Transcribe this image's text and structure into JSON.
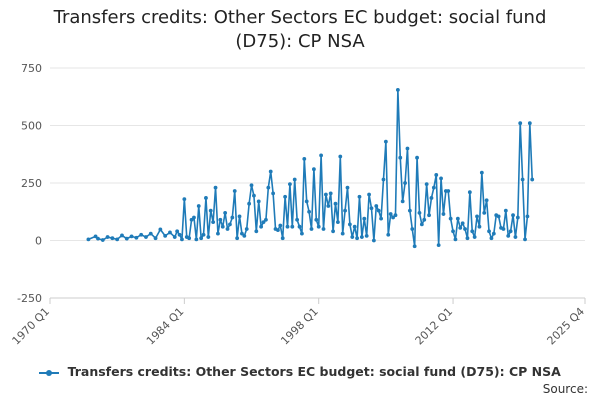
{
  "chart_data": {
    "type": "line",
    "title": "Transfers credits: Other Sectors EC budget: social fund (D75): CP NSA",
    "xlabel": "",
    "ylabel": "",
    "ylim": [
      -250,
      750
    ],
    "xlim": [
      1970,
      2025.75
    ],
    "y_ticks": [
      "-250",
      "0",
      "250",
      "500",
      "750"
    ],
    "x_ticks": [
      "1970 Q1",
      "1984 Q1",
      "1998 Q1",
      "2012 Q1",
      "2025 Q4"
    ],
    "grid": true,
    "legend_position": "bottom",
    "color": "#1f7bb8",
    "series": [
      {
        "name": "Transfers credits: Other Sectors EC budget: social fund (D75): CP NSA",
        "points": [
          [
            1974.0,
            5
          ],
          [
            1974.75,
            18
          ],
          [
            1975.0,
            8
          ],
          [
            1975.5,
            2
          ],
          [
            1976.0,
            15
          ],
          [
            1976.5,
            10
          ],
          [
            1977.0,
            5
          ],
          [
            1977.5,
            22
          ],
          [
            1978.0,
            8
          ],
          [
            1978.5,
            18
          ],
          [
            1979.0,
            12
          ],
          [
            1979.5,
            25
          ],
          [
            1980.0,
            15
          ],
          [
            1980.5,
            30
          ],
          [
            1981.0,
            10
          ],
          [
            1981.5,
            48
          ],
          [
            1982.0,
            20
          ],
          [
            1982.5,
            35
          ],
          [
            1983.0,
            15
          ],
          [
            1983.25,
            40
          ],
          [
            1983.5,
            25
          ],
          [
            1983.75,
            5
          ],
          [
            1984.0,
            180
          ],
          [
            1984.25,
            15
          ],
          [
            1984.5,
            10
          ],
          [
            1984.75,
            90
          ],
          [
            1985.0,
            100
          ],
          [
            1985.25,
            5
          ],
          [
            1985.5,
            150
          ],
          [
            1985.75,
            10
          ],
          [
            1986.0,
            25
          ],
          [
            1986.25,
            185
          ],
          [
            1986.5,
            15
          ],
          [
            1986.75,
            130
          ],
          [
            1987.0,
            80
          ],
          [
            1987.25,
            230
          ],
          [
            1987.5,
            30
          ],
          [
            1987.75,
            90
          ],
          [
            1988.0,
            60
          ],
          [
            1988.25,
            120
          ],
          [
            1988.5,
            50
          ],
          [
            1988.75,
            70
          ],
          [
            1989.0,
            100
          ],
          [
            1989.25,
            215
          ],
          [
            1989.5,
            10
          ],
          [
            1989.75,
            105
          ],
          [
            1990.0,
            30
          ],
          [
            1990.25,
            20
          ],
          [
            1990.5,
            50
          ],
          [
            1990.75,
            160
          ],
          [
            1991.0,
            240
          ],
          [
            1991.25,
            195
          ],
          [
            1991.5,
            40
          ],
          [
            1991.75,
            170
          ],
          [
            1992.0,
            60
          ],
          [
            1992.25,
            80
          ],
          [
            1992.5,
            90
          ],
          [
            1992.75,
            230
          ],
          [
            1993.0,
            300
          ],
          [
            1993.25,
            205
          ],
          [
            1993.5,
            50
          ],
          [
            1993.75,
            45
          ],
          [
            1994.0,
            65
          ],
          [
            1994.25,
            10
          ],
          [
            1994.5,
            190
          ],
          [
            1994.75,
            60
          ],
          [
            1995.0,
            245
          ],
          [
            1995.25,
            60
          ],
          [
            1995.5,
            265
          ],
          [
            1995.75,
            90
          ],
          [
            1996.0,
            60
          ],
          [
            1996.25,
            30
          ],
          [
            1996.5,
            355
          ],
          [
            1996.75,
            170
          ],
          [
            1997.0,
            125
          ],
          [
            1997.25,
            50
          ],
          [
            1997.5,
            310
          ],
          [
            1997.75,
            90
          ],
          [
            1998.0,
            60
          ],
          [
            1998.25,
            370
          ],
          [
            1998.5,
            50
          ],
          [
            1998.75,
            200
          ],
          [
            1999.0,
            150
          ],
          [
            1999.25,
            205
          ],
          [
            1999.5,
            40
          ],
          [
            1999.75,
            160
          ],
          [
            2000.0,
            80
          ],
          [
            2000.25,
            365
          ],
          [
            2000.5,
            30
          ],
          [
            2000.75,
            130
          ],
          [
            2001.0,
            230
          ],
          [
            2001.25,
            70
          ],
          [
            2001.5,
            15
          ],
          [
            2001.75,
            60
          ],
          [
            2002.0,
            10
          ],
          [
            2002.25,
            190
          ],
          [
            2002.5,
            15
          ],
          [
            2002.75,
            95
          ],
          [
            2003.0,
            20
          ],
          [
            2003.25,
            200
          ],
          [
            2003.5,
            140
          ],
          [
            2003.75,
            0
          ],
          [
            2004.0,
            150
          ],
          [
            2004.25,
            130
          ],
          [
            2004.5,
            95
          ],
          [
            2004.75,
            265
          ],
          [
            2005.0,
            430
          ],
          [
            2005.25,
            25
          ],
          [
            2005.5,
            115
          ],
          [
            2005.75,
            100
          ],
          [
            2006.0,
            110
          ],
          [
            2006.25,
            655
          ],
          [
            2006.5,
            360
          ],
          [
            2006.75,
            170
          ],
          [
            2007.0,
            250
          ],
          [
            2007.25,
            400
          ],
          [
            2007.5,
            130
          ],
          [
            2007.75,
            50
          ],
          [
            2008.0,
            -25
          ],
          [
            2008.25,
            360
          ],
          [
            2008.5,
            120
          ],
          [
            2008.75,
            70
          ],
          [
            2009.0,
            90
          ],
          [
            2009.25,
            245
          ],
          [
            2009.5,
            110
          ],
          [
            2009.75,
            185
          ],
          [
            2010.0,
            230
          ],
          [
            2010.25,
            285
          ],
          [
            2010.5,
            -20
          ],
          [
            2010.75,
            270
          ],
          [
            2011.0,
            115
          ],
          [
            2011.25,
            215
          ],
          [
            2011.5,
            215
          ],
          [
            2011.75,
            95
          ],
          [
            2012.0,
            40
          ],
          [
            2012.25,
            5
          ],
          [
            2012.5,
            95
          ],
          [
            2012.75,
            55
          ],
          [
            2013.0,
            75
          ],
          [
            2013.25,
            50
          ],
          [
            2013.5,
            10
          ],
          [
            2013.75,
            210
          ],
          [
            2014.0,
            40
          ],
          [
            2014.25,
            15
          ],
          [
            2014.5,
            105
          ],
          [
            2014.75,
            60
          ],
          [
            2015.0,
            295
          ],
          [
            2015.25,
            120
          ],
          [
            2015.5,
            175
          ],
          [
            2015.75,
            40
          ],
          [
            2016.0,
            10
          ],
          [
            2016.25,
            30
          ],
          [
            2016.5,
            110
          ],
          [
            2016.75,
            105
          ],
          [
            2017.0,
            55
          ],
          [
            2017.25,
            50
          ],
          [
            2017.5,
            130
          ],
          [
            2017.75,
            20
          ],
          [
            2018.0,
            40
          ],
          [
            2018.25,
            110
          ],
          [
            2018.5,
            15
          ],
          [
            2018.75,
            100
          ],
          [
            2019.0,
            510
          ],
          [
            2019.25,
            265
          ],
          [
            2019.5,
            5
          ],
          [
            2019.75,
            105
          ],
          [
            2020.0,
            510
          ],
          [
            2020.25,
            265
          ]
        ]
      }
    ]
  },
  "legend": {
    "label": "Transfers credits: Other Sectors EC budget: social fund (D75): CP NSA"
  },
  "source": {
    "label": "Source:"
  }
}
